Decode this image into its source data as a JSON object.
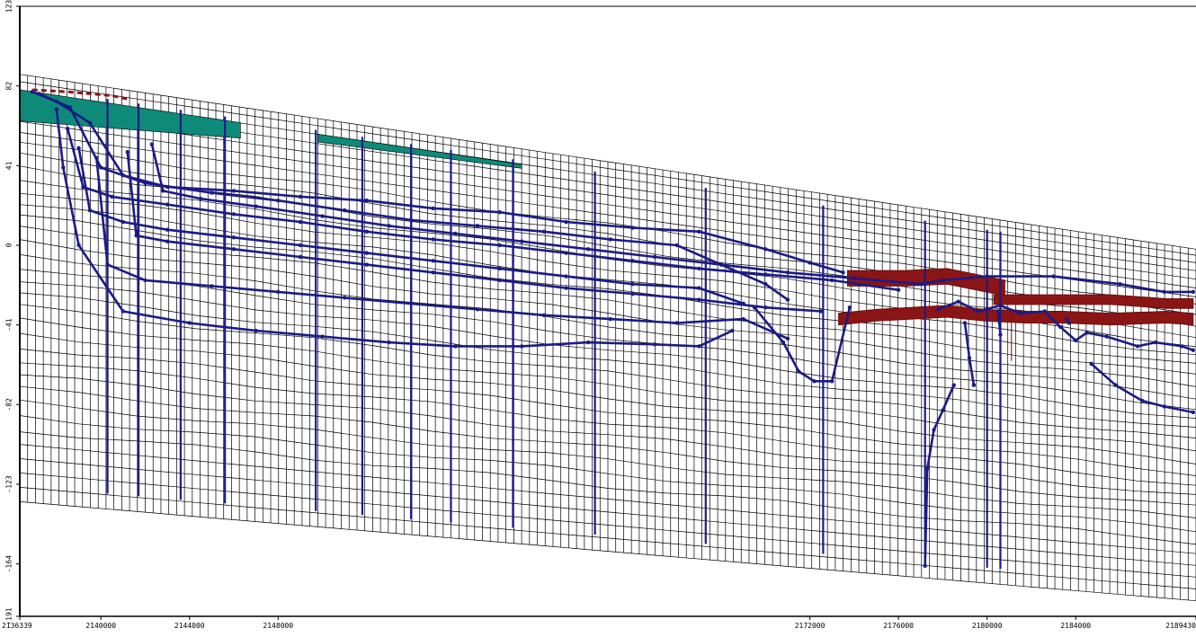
{
  "chart_data": {
    "type": "line",
    "title": "",
    "xlabel": "",
    "ylabel": "",
    "xlim": [
      2136339,
      2189430
    ],
    "ylim": [
      -191,
      123
    ],
    "grid": true,
    "y_ticks": [
      {
        "value": 123,
        "label": "123"
      },
      {
        "value": 82,
        "label": "82"
      },
      {
        "value": 41,
        "label": "41"
      },
      {
        "value": 0,
        "label": "0"
      },
      {
        "value": -41,
        "label": "-41"
      },
      {
        "value": -82,
        "label": "-82"
      },
      {
        "value": -123,
        "label": "-123"
      },
      {
        "value": -164,
        "label": "-164"
      },
      {
        "value": -191,
        "label": "-191"
      }
    ],
    "x_ticks": [
      {
        "value": 2136339,
        "label": "2136339"
      },
      {
        "value": 2140000,
        "label": "2140000"
      },
      {
        "value": 2144000,
        "label": "2144000"
      },
      {
        "value": 2148000,
        "label": "2148000"
      },
      {
        "value": 2172000,
        "label": "2172000"
      },
      {
        "value": 2176000,
        "label": "2176000"
      },
      {
        "value": 2180000,
        "label": "2180000"
      },
      {
        "value": 2184000,
        "label": "2184000"
      },
      {
        "value": 2189430,
        "label": "2189430"
      }
    ],
    "layer_surfaces": [
      {
        "name": "top",
        "x": [
          2136339,
          2189430
        ],
        "y": [
          88,
          -2
        ]
      },
      {
        "name": "bottom",
        "x": [
          2136339,
          2189430
        ],
        "y": [
          -132,
          -183
        ]
      }
    ],
    "series": [
      {
        "color": "#1b1b86",
        "x": [
          2136900,
          2138000,
          2139500,
          2141000,
          2143000,
          2146000,
          2149000,
          2152000,
          2155000,
          2158000,
          2161000,
          2164000,
          2167000,
          2170000,
          2172000,
          2173500
        ],
        "y": [
          79,
          74,
          63,
          36,
          30,
          28,
          25,
          23,
          19,
          17,
          12,
          9,
          7,
          -2,
          -9,
          -14
        ]
      },
      {
        "color": "#1b1b86",
        "x": [
          2137200,
          2138600,
          2140000,
          2142000,
          2145000,
          2148000,
          2151000,
          2154000,
          2157000,
          2160000,
          2163000,
          2166000,
          2168000,
          2170000,
          2171000
        ],
        "y": [
          78,
          71,
          40,
          32,
          27,
          23,
          18,
          13,
          10,
          7,
          3,
          0,
          -10,
          -20,
          -28
        ]
      },
      {
        "color": "#1b1b86",
        "x": [
          2138500,
          2139200,
          2140500,
          2143000,
          2146000,
          2149000,
          2152000,
          2155000,
          2158000,
          2161000,
          2164000,
          2167000,
          2170000,
          2173000,
          2176000
        ],
        "y": [
          60,
          30,
          25,
          21,
          16,
          12,
          7,
          3,
          0,
          -4,
          -8,
          -12,
          -15,
          -18,
          -23
        ]
      },
      {
        "color": "#1b1b86",
        "x": [
          2139000,
          2139500,
          2141000,
          2143000,
          2146000,
          2149000,
          2152000,
          2155000,
          2158000,
          2161000,
          2164000,
          2167000,
          2169000
        ],
        "y": [
          50,
          18,
          12,
          8,
          4,
          0,
          -4,
          -8,
          -12,
          -16,
          -20,
          -22,
          -30
        ]
      },
      {
        "color": "#1b1b86",
        "x": [
          2139800,
          2140300,
          2142000,
          2145000,
          2148000,
          2151000,
          2154000,
          2157000,
          2160000,
          2163000,
          2166000,
          2169000,
          2171000
        ],
        "y": [
          45,
          -10,
          -18,
          -21,
          -24,
          -27,
          -30,
          -33,
          -36,
          -38,
          -40,
          -38,
          -48
        ]
      },
      {
        "color": "#1b1b86",
        "x": [
          2141200,
          2141600,
          2143000,
          2146000,
          2149000,
          2152000,
          2155000,
          2158000,
          2161000,
          2164000,
          2167000,
          2170000,
          2172500
        ],
        "y": [
          48,
          5,
          2,
          -2,
          -6,
          -10,
          -14,
          -18,
          -22,
          -25,
          -28,
          -32,
          -34
        ]
      },
      {
        "color": "#1b1b86",
        "x": [
          2142300,
          2142800,
          2144500,
          2147000,
          2150000,
          2153000,
          2156000,
          2159000,
          2162000,
          2165000,
          2168000,
          2171000,
          2174000,
          2177000,
          2178000,
          2180000,
          2183000,
          2186000,
          2188000,
          2189300
        ],
        "y": [
          52,
          28,
          24,
          20,
          15,
          10,
          6,
          2,
          -2,
          -6,
          -10,
          -14,
          -17,
          -20,
          -18,
          -16,
          -16,
          -20,
          -24,
          -24
        ]
      },
      {
        "color": "#1b1b86",
        "x": [
          2138000,
          2138300,
          2139000,
          2141000,
          2144000,
          2147000,
          2150000,
          2153000,
          2156000,
          2159000,
          2162000,
          2165000,
          2167000,
          2168500
        ],
        "y": [
          70,
          40,
          0,
          -34,
          -40,
          -44,
          -47,
          -50,
          -52,
          -52,
          -50,
          -51,
          -52,
          -44
        ]
      },
      {
        "color": "#1b1b86",
        "x": [
          2169500,
          2170800,
          2171500,
          2172200,
          2173000,
          2173800
        ],
        "y": [
          -32,
          -50,
          -65,
          -70,
          -70,
          -32
        ]
      },
      {
        "color": "#1b1b86",
        "x": [
          2177800,
          2178700,
          2179600,
          2180600,
          2181500,
          2182600,
          2183300,
          2184000,
          2184500,
          2185400,
          2186800,
          2187600,
          2188800,
          2189300
        ],
        "y": [
          -33,
          -29,
          -34,
          -31,
          -35,
          -34,
          -42,
          -49,
          -45,
          -47,
          -52,
          -50,
          -52,
          -54
        ]
      },
      {
        "color": "#1b1b86",
        "x": [
          2179000,
          2179200,
          2179400
        ],
        "y": [
          -40,
          -58,
          -72
        ]
      },
      {
        "color": "#1b1b86",
        "x": [
          2178500,
          2178000,
          2177600,
          2177300,
          2177200
        ],
        "y": [
          -72,
          -85,
          -95,
          -115,
          -165
        ]
      },
      {
        "color": "#1b1b86",
        "x": [
          2184700,
          2185800,
          2187000,
          2188000,
          2189300
        ],
        "y": [
          -61,
          -72,
          -80,
          -83,
          -86
        ]
      },
      {
        "color": "#1b1b86",
        "x": [
          2183600,
          2183700
        ],
        "y": [
          -38,
          -40
        ]
      },
      {
        "color": "#1b1b86",
        "x": [
          2180500,
          2180600
        ],
        "y": [
          -34,
          -46
        ]
      }
    ],
    "vertical_wells_x": [
      2140300,
      2141700,
      2143600,
      2145600,
      2149700,
      2151800,
      2154000,
      2155800,
      2158600,
      2162300,
      2167300,
      2172600,
      2177200,
      2180000,
      2180600
    ],
    "blocks_teal": [
      {
        "x0": 2136339,
        "x1": 2151000,
        "y_top_offset": 0,
        "thickness": 16,
        "range": [
          2136339,
          2146300
        ]
      },
      {
        "x0": 2149800,
        "x1": 2159000,
        "y_top_offset": 0,
        "thickness": 4,
        "range": [
          2149800,
          2159000
        ]
      }
    ],
    "blocks_red": [
      {
        "x": [
          2173300,
          2175000,
          2178200,
          2179900,
          2181700,
          2183400,
          2185600,
          2188100,
          2189300
        ],
        "y": [
          -38,
          -36,
          -34,
          -36,
          -37,
          -37,
          -38,
          -37,
          -38
        ],
        "thickness": 6
      },
      {
        "x": [
          2173700,
          2176300,
          2178200,
          2180800
        ],
        "y": [
          -17,
          -17,
          -16,
          -22
        ],
        "thickness": 8
      },
      {
        "x": [
          2180300,
          2185600,
          2188100,
          2189300
        ],
        "y": [
          -28,
          -28,
          -30,
          -30
        ],
        "thickness": 5
      },
      {
        "x": [
          2181100,
          2181100
        ],
        "y": [
          -43,
          -52
        ],
        "thickness": 15
      }
    ]
  }
}
